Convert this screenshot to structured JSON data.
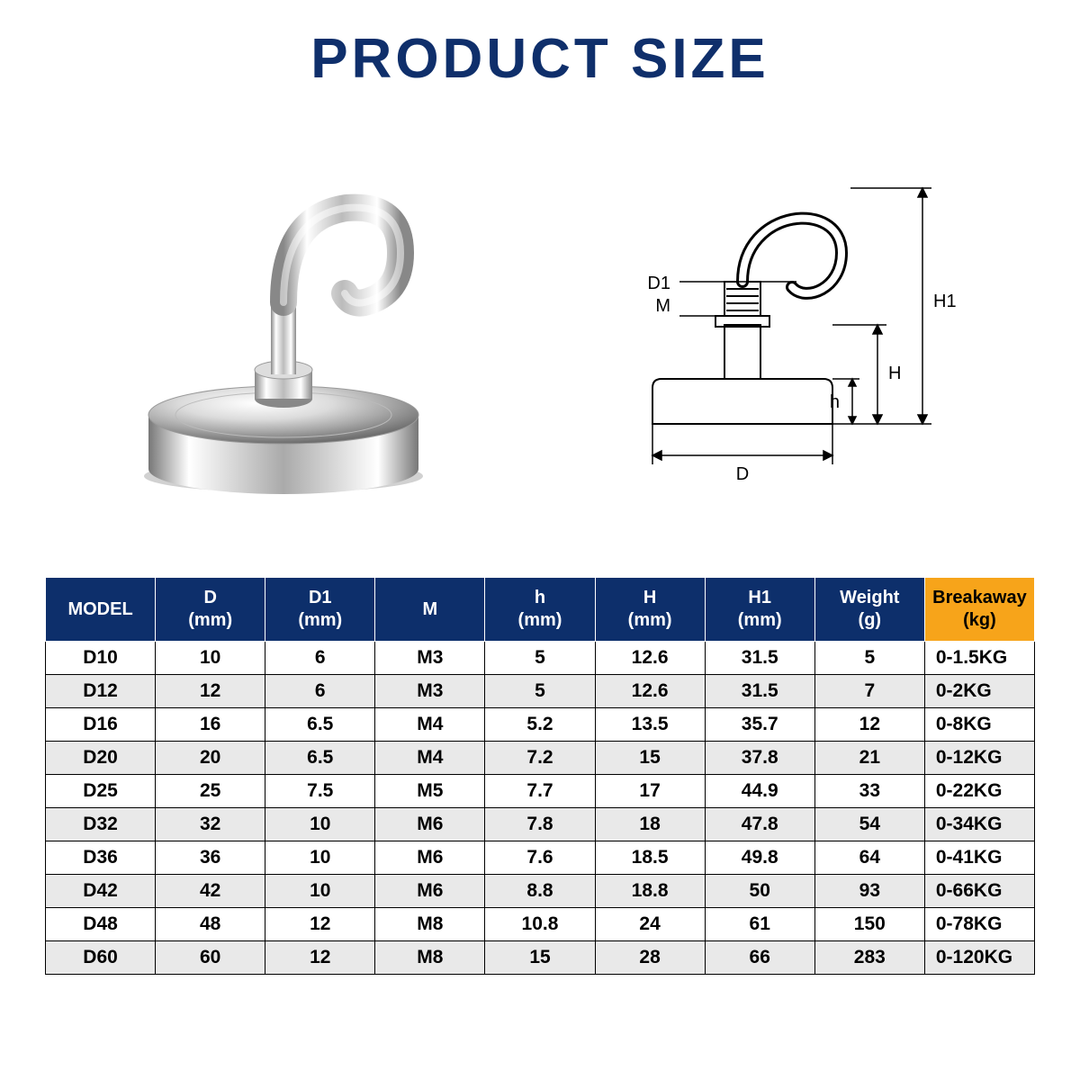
{
  "title": "PRODUCT SIZE",
  "colors": {
    "brand_navy": "#0d2f6b",
    "accent_orange": "#f7a41a",
    "white": "#ffffff",
    "black": "#000000",
    "row_alt": "#e9e9e9"
  },
  "diagram_labels": {
    "D": "D",
    "D1": "D1",
    "M": "M",
    "h": "h",
    "H": "H",
    "H1": "H1"
  },
  "table": {
    "columns": [
      {
        "key": "model",
        "label": "MODEL",
        "unit": ""
      },
      {
        "key": "D",
        "label": "D",
        "unit": "(mm)"
      },
      {
        "key": "D1",
        "label": "D1",
        "unit": "(mm)"
      },
      {
        "key": "M",
        "label": "M",
        "unit": ""
      },
      {
        "key": "h",
        "label": "h",
        "unit": "(mm)"
      },
      {
        "key": "H",
        "label": "H",
        "unit": "(mm)"
      },
      {
        "key": "H1",
        "label": "H1",
        "unit": "(mm)"
      },
      {
        "key": "Weight",
        "label": "Weight",
        "unit": "(g)"
      },
      {
        "key": "Breakaway",
        "label": "Breakaway",
        "unit": "(kg)"
      }
    ],
    "rows": [
      {
        "model": "D10",
        "D": "10",
        "D1": "6",
        "M": "M3",
        "h": "5",
        "H": "12.6",
        "H1": "31.5",
        "Weight": "5",
        "Breakaway": "0-1.5KG"
      },
      {
        "model": "D12",
        "D": "12",
        "D1": "6",
        "M": "M3",
        "h": "5",
        "H": "12.6",
        "H1": "31.5",
        "Weight": "7",
        "Breakaway": "0-2KG"
      },
      {
        "model": "D16",
        "D": "16",
        "D1": "6.5",
        "M": "M4",
        "h": "5.2",
        "H": "13.5",
        "H1": "35.7",
        "Weight": "12",
        "Breakaway": "0-8KG"
      },
      {
        "model": "D20",
        "D": "20",
        "D1": "6.5",
        "M": "M4",
        "h": "7.2",
        "H": "15",
        "H1": "37.8",
        "Weight": "21",
        "Breakaway": "0-12KG"
      },
      {
        "model": "D25",
        "D": "25",
        "D1": "7.5",
        "M": "M5",
        "h": "7.7",
        "H": "17",
        "H1": "44.9",
        "Weight": "33",
        "Breakaway": "0-22KG"
      },
      {
        "model": "D32",
        "D": "32",
        "D1": "10",
        "M": "M6",
        "h": "7.8",
        "H": "18",
        "H1": "47.8",
        "Weight": "54",
        "Breakaway": "0-34KG"
      },
      {
        "model": "D36",
        "D": "36",
        "D1": "10",
        "M": "M6",
        "h": "7.6",
        "H": "18.5",
        "H1": "49.8",
        "Weight": "64",
        "Breakaway": "0-41KG"
      },
      {
        "model": "D42",
        "D": "42",
        "D1": "10",
        "M": "M6",
        "h": "8.8",
        "H": "18.8",
        "H1": "50",
        "Weight": "93",
        "Breakaway": "0-66KG"
      },
      {
        "model": "D48",
        "D": "48",
        "D1": "12",
        "M": "M8",
        "h": "10.8",
        "H": "24",
        "H1": "61",
        "Weight": "150",
        "Breakaway": "0-78KG"
      },
      {
        "model": "D60",
        "D": "60",
        "D1": "12",
        "M": "M8",
        "h": "15",
        "H": "28",
        "H1": "66",
        "Weight": "283",
        "Breakaway": "0-120KG"
      }
    ]
  }
}
